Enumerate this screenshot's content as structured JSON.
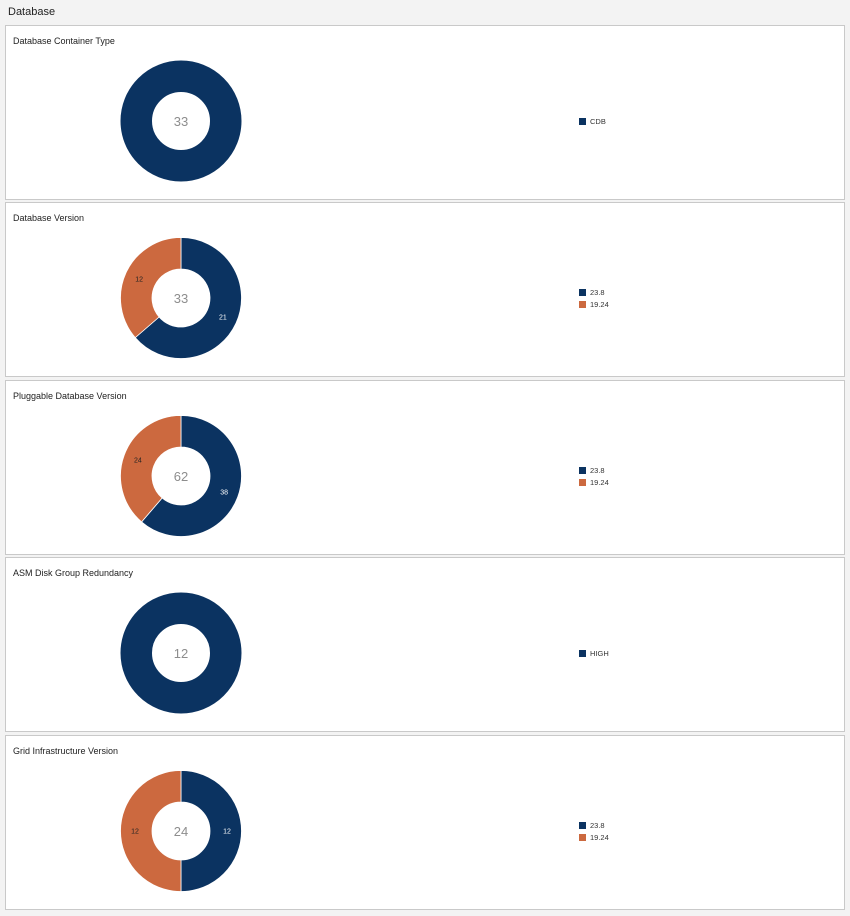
{
  "page": {
    "title": "Database"
  },
  "colors": {
    "navy": "#0b3361",
    "orange": "#cc693f"
  },
  "chart_data": [
    {
      "type": "pie",
      "title": "Database Container Type",
      "total": "33",
      "slices": [
        {
          "label": "CDB",
          "value": 33,
          "color": "#0b3361",
          "show_value": false
        }
      ]
    },
    {
      "type": "pie",
      "title": "Database Version",
      "total": "33",
      "slices": [
        {
          "label": "23.8",
          "value": 21,
          "color": "#0b3361",
          "show_value": true
        },
        {
          "label": "19.24",
          "value": 12,
          "color": "#cc693f",
          "show_value": true
        }
      ]
    },
    {
      "type": "pie",
      "title": "Pluggable Database Version",
      "total": "62",
      "slices": [
        {
          "label": "23.8",
          "value": 38,
          "color": "#0b3361",
          "show_value": true
        },
        {
          "label": "19.24",
          "value": 24,
          "color": "#cc693f",
          "show_value": true
        }
      ]
    },
    {
      "type": "pie",
      "title": "ASM Disk Group Redundancy",
      "total": "12",
      "slices": [
        {
          "label": "HIGH",
          "value": 12,
          "color": "#0b3361",
          "show_value": false
        }
      ]
    },
    {
      "type": "pie",
      "title": "Grid Infrastructure Version",
      "total": "24",
      "slices": [
        {
          "label": "23.8",
          "value": 12,
          "color": "#0b3361",
          "show_value": true
        },
        {
          "label": "19.24",
          "value": 12,
          "color": "#cc693f",
          "show_value": true
        }
      ]
    }
  ]
}
